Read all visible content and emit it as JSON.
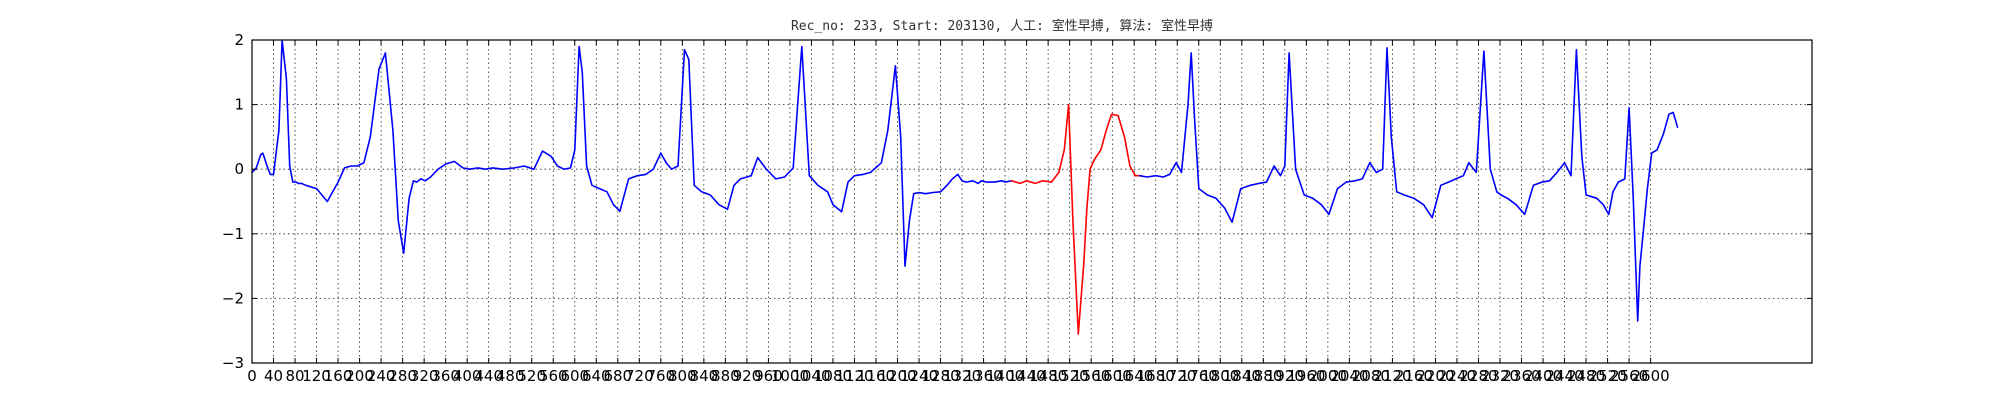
{
  "chart_data": {
    "type": "line",
    "title": "Rec_no: 233, Start: 203130, 人工: 室性早搏, 算法: 室性早搏",
    "xlabel": "",
    "ylabel": "",
    "xlim": [
      0,
      2900
    ],
    "ylim": [
      -3,
      2
    ],
    "grid": true,
    "x_ticks": [
      0,
      40,
      80,
      120,
      160,
      200,
      240,
      280,
      320,
      360,
      400,
      440,
      480,
      520,
      560,
      600,
      640,
      680,
      720,
      760,
      800,
      840,
      880,
      920,
      960,
      1000,
      1040,
      1080,
      1120,
      1160,
      1200,
      1240,
      1280,
      1320,
      1360,
      1400,
      1440,
      1480,
      1520,
      1560,
      1600,
      1640,
      1680,
      1720,
      1760,
      1800,
      1840,
      1880,
      1920,
      1960,
      2000,
      2040,
      2080,
      2120,
      2160,
      2200,
      2240,
      2280,
      2320,
      2360,
      2400,
      2440,
      2480,
      2520,
      2560,
      2600
    ],
    "y_ticks": [
      -3,
      -2,
      -1,
      0,
      1,
      2
    ],
    "series": [
      {
        "color": "#0000ff",
        "x": [
          0,
          8,
          16,
          20,
          28,
          34,
          40,
          50,
          56,
          64,
          70,
          76,
          82,
          86,
          92,
          100,
          120,
          140,
          160,
          172,
          184,
          196,
          208,
          220,
          236,
          248,
          262,
          272,
          282,
          292,
          300,
          306,
          314,
          322,
          332,
          346,
          360,
          376,
          392,
          404,
          420,
          434,
          448,
          466,
          488,
          506,
          524,
          540,
          556,
          568,
          580,
          592,
          600,
          608,
          614,
          622,
          632,
          646,
          660,
          672,
          684,
          700,
          716,
          732,
          746,
          760,
          770,
          780,
          792,
          804,
          812,
          822,
          836,
          852,
          868,
          884,
          896,
          908,
          920,
          928,
          940,
          956,
          974,
          990,
          1006,
          1022,
          1036,
          1052,
          1070,
          1080,
          1096,
          1108,
          1120,
          1136,
          1150,
          1170,
          1182,
          1196,
          1206,
          1214,
          1222,
          1230,
          1240,
          1252,
          1266,
          1280,
          1292,
          1302,
          1312,
          1320,
          1328,
          1340,
          1350,
          1356,
          1366,
          1380,
          1394,
          1400,
          1412
        ],
        "values": [
          -0.05,
          0.02,
          0.22,
          0.25,
          0.05,
          -0.08,
          -0.08,
          0.6,
          2.0,
          1.4,
          0.05,
          -0.2,
          -0.2,
          -0.22,
          -0.22,
          -0.25,
          -0.3,
          -0.5,
          -0.2,
          0.02,
          0.05,
          0.05,
          0.1,
          0.5,
          1.55,
          1.8,
          0.6,
          -0.8,
          -1.3,
          -0.45,
          -0.18,
          -0.2,
          -0.15,
          -0.18,
          -0.12,
          0.0,
          0.08,
          0.12,
          0.02,
          0.0,
          0.02,
          0.0,
          0.02,
          0.0,
          0.02,
          0.05,
          0.0,
          0.28,
          0.2,
          0.05,
          0.0,
          0.02,
          0.3,
          1.9,
          1.5,
          0.05,
          -0.25,
          -0.3,
          -0.35,
          -0.55,
          -0.65,
          -0.15,
          -0.1,
          -0.08,
          0.0,
          0.25,
          0.1,
          0.0,
          0.05,
          1.85,
          1.7,
          -0.25,
          -0.35,
          -0.4,
          -0.55,
          -0.62,
          -0.25,
          -0.15,
          -0.12,
          -0.1,
          0.18,
          0.0,
          -0.15,
          -0.12,
          0.02,
          1.9,
          -0.1,
          -0.25,
          -0.35,
          -0.55,
          -0.66,
          -0.2,
          -0.1,
          -0.08,
          -0.05,
          0.1,
          0.6,
          1.6,
          0.5,
          -1.5,
          -0.8,
          -0.38,
          -0.36,
          -0.38,
          -0.36,
          -0.35,
          -0.25,
          -0.15,
          -0.08,
          -0.18,
          -0.2,
          -0.18,
          -0.22,
          -0.18,
          -0.2,
          -0.2,
          -0.18,
          -0.2,
          -0.18
        ]
      },
      {
        "color": "#ff0000",
        "x": [
          1412,
          1428,
          1440,
          1456,
          1470,
          1486,
          1500,
          1510,
          1518,
          1526,
          1536,
          1546,
          1552,
          1558,
          1566,
          1578,
          1588,
          1598,
          1610,
          1622,
          1632,
          1642,
          1650
        ],
        "values": [
          -0.18,
          -0.22,
          -0.18,
          -0.22,
          -0.18,
          -0.2,
          -0.05,
          0.3,
          1.0,
          -0.8,
          -2.55,
          -1.5,
          -0.6,
          0.0,
          0.15,
          0.3,
          0.6,
          0.85,
          0.83,
          0.5,
          0.05,
          -0.1,
          -0.1
        ]
      },
      {
        "color": "#0000ff",
        "x": [
          1650,
          1664,
          1680,
          1694,
          1706,
          1718,
          1728,
          1740,
          1746,
          1752,
          1760,
          1776,
          1792,
          1808,
          1822,
          1838,
          1856,
          1872,
          1886,
          1900,
          1912,
          1920,
          1928,
          1940,
          1956,
          1972,
          1988,
          2002,
          2018,
          2034,
          2050,
          2064,
          2078,
          2090,
          2102,
          2110,
          2118,
          2128,
          2142,
          2160,
          2178,
          2194,
          2210,
          2224,
          2238,
          2252,
          2262,
          2276,
          2290,
          2302,
          2314,
          2322,
          2334,
          2350,
          2366,
          2382,
          2398,
          2412,
          2426,
          2440,
          2452,
          2462,
          2472,
          2480,
          2488,
          2500,
          2512,
          2522,
          2530,
          2540,
          2552,
          2560,
          2568,
          2576,
          2580,
          2586,
          2594,
          2602,
          2612,
          2624,
          2634,
          2642,
          2650
        ],
        "values": [
          -0.1,
          -0.12,
          -0.1,
          -0.12,
          -0.08,
          0.1,
          -0.05,
          1.0,
          1.8,
          0.8,
          -0.3,
          -0.4,
          -0.45,
          -0.6,
          -0.82,
          -0.3,
          -0.25,
          -0.22,
          -0.2,
          0.05,
          -0.1,
          0.05,
          1.8,
          0.0,
          -0.4,
          -0.45,
          -0.55,
          -0.7,
          -0.3,
          -0.2,
          -0.18,
          -0.15,
          0.1,
          -0.05,
          0.0,
          1.88,
          0.5,
          -0.35,
          -0.4,
          -0.45,
          -0.55,
          -0.75,
          -0.25,
          -0.2,
          -0.15,
          -0.1,
          0.1,
          -0.05,
          1.83,
          0.0,
          -0.35,
          -0.4,
          -0.45,
          -0.55,
          -0.7,
          -0.25,
          -0.2,
          -0.18,
          -0.05,
          0.1,
          -0.1,
          1.85,
          0.2,
          -0.4,
          -0.42,
          -0.45,
          -0.55,
          -0.7,
          -0.35,
          -0.2,
          -0.15,
          0.95,
          -0.5,
          -2.35,
          -1.5,
          -1.0,
          -0.3,
          0.25,
          0.3,
          0.55,
          0.85,
          0.88,
          0.65
        ]
      }
    ]
  }
}
